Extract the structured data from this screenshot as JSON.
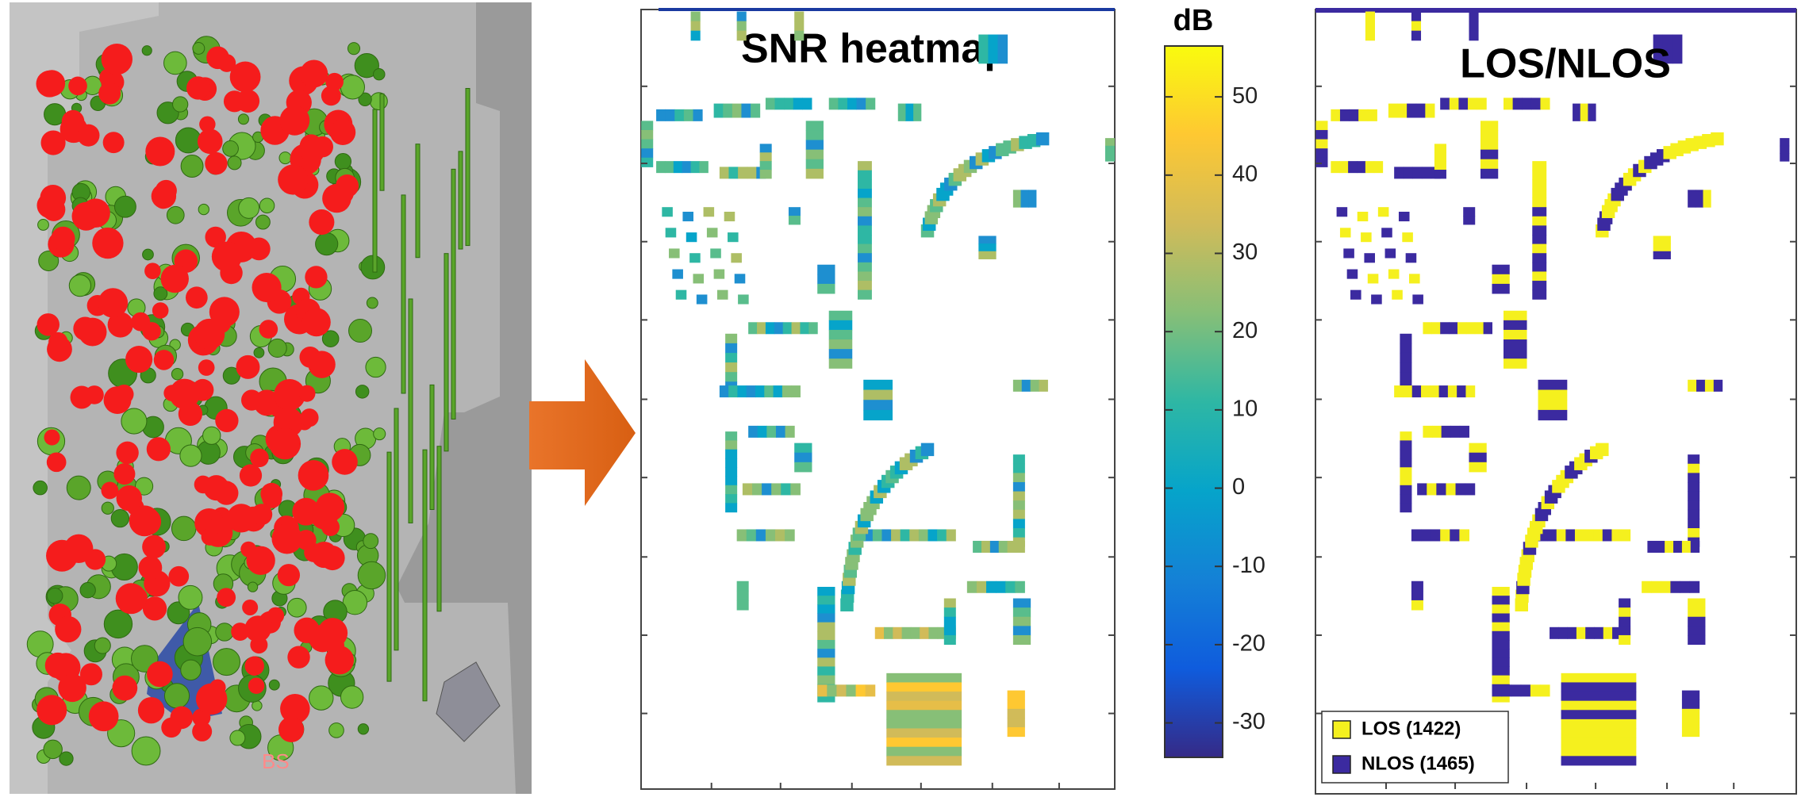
{
  "map_panel": {
    "label": "BS"
  },
  "chart_data": {
    "type": "colorbar",
    "title": "SNR heatmap",
    "colorbar_title": "dB",
    "ylim": [
      -34.4,
      56.5
    ],
    "yticks": [
      -30,
      -20,
      -10,
      0,
      10,
      20,
      30,
      40,
      50
    ],
    "colors": [
      "#352a87",
      "#0f5cdd",
      "#1481d6",
      "#06a4ca",
      "#2eb7a4",
      "#87bf77",
      "#d1bb59",
      "#fec832",
      "#f9fb0e"
    ]
  },
  "los_panel": {
    "title": "LOS/NLOS",
    "legend": [
      {
        "name": "LOS (1422)",
        "color": "#f5f01e"
      },
      {
        "name": "NLOS (1465)",
        "color": "#3b2aa0"
      }
    ]
  }
}
